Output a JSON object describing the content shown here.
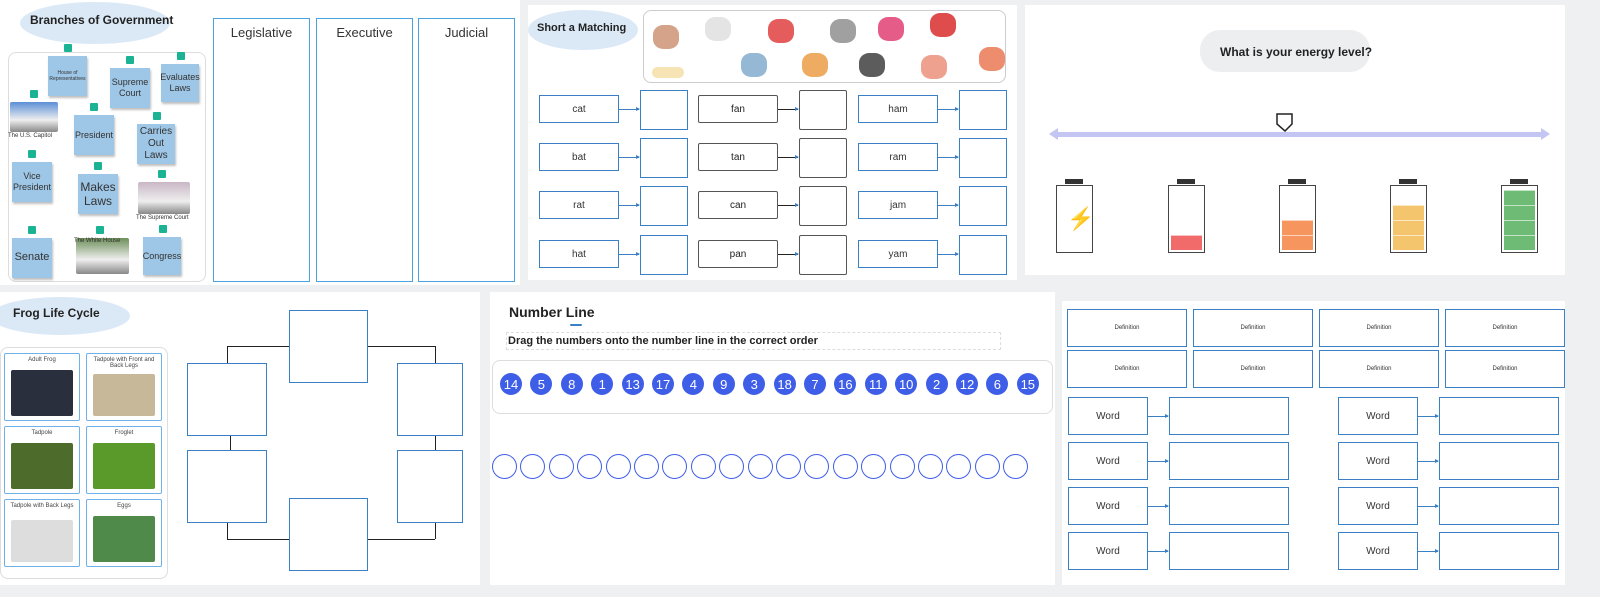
{
  "branches": {
    "title": "Branches of Government",
    "columns": [
      "Legislative",
      "Executive",
      "Judicial"
    ],
    "stickies": [
      "House of Representatives",
      "Supreme Court",
      "Evaluates Laws",
      "President",
      "Carries Out Laws",
      "Vice President",
      "Makes Laws",
      "Senate",
      "Congress"
    ],
    "images": [
      "The U.S. Capitol",
      "The Supreme Court",
      "The White House"
    ]
  },
  "matching": {
    "title": "Short a Matching",
    "words": [
      [
        "cat",
        "bat",
        "rat",
        "hat"
      ],
      [
        "fan",
        "tan",
        "can",
        "pan"
      ],
      [
        "ham",
        "ram",
        "jam",
        "yam"
      ]
    ],
    "pictures": [
      "bat-icon",
      "ram-icon",
      "jam-icon",
      "can-icon",
      "rat-icon",
      "cat-icon",
      "feather-icon",
      "pan-icon",
      "hat-icon",
      "ham-icon",
      "fan-icon"
    ]
  },
  "energy": {
    "question": "What is your energy level?",
    "slider_value": 0.47,
    "levels": [
      0,
      1,
      2,
      3,
      4
    ],
    "colors": [
      "#f26b6b",
      "#f6955e",
      "#f4c56d",
      "#6dbb74"
    ]
  },
  "frog": {
    "title": "Frog Life Cycle",
    "cards": [
      "Adult Frog",
      "Tadpole with Front and Back Legs",
      "Tadpole",
      "Froglet",
      "Tadpole with Back Legs",
      "Eggs"
    ]
  },
  "numberline": {
    "title": "Number Line",
    "instruction": "Drag the numbers onto the number line in the correct order",
    "numbers": [
      "14",
      "5",
      "8",
      "1",
      "13",
      "17",
      "4",
      "9",
      "3",
      "18",
      "7",
      "16",
      "11",
      "10",
      "2",
      "12",
      "6",
      "15"
    ],
    "slots": 19
  },
  "vocab": {
    "definitions": [
      "Definition",
      "Definition",
      "Definition",
      "Definition",
      "Definition",
      "Definition",
      "Definition",
      "Definition"
    ],
    "words": [
      "Word",
      "Word",
      "Word",
      "Word",
      "Word",
      "Word",
      "Word",
      "Word"
    ]
  }
}
